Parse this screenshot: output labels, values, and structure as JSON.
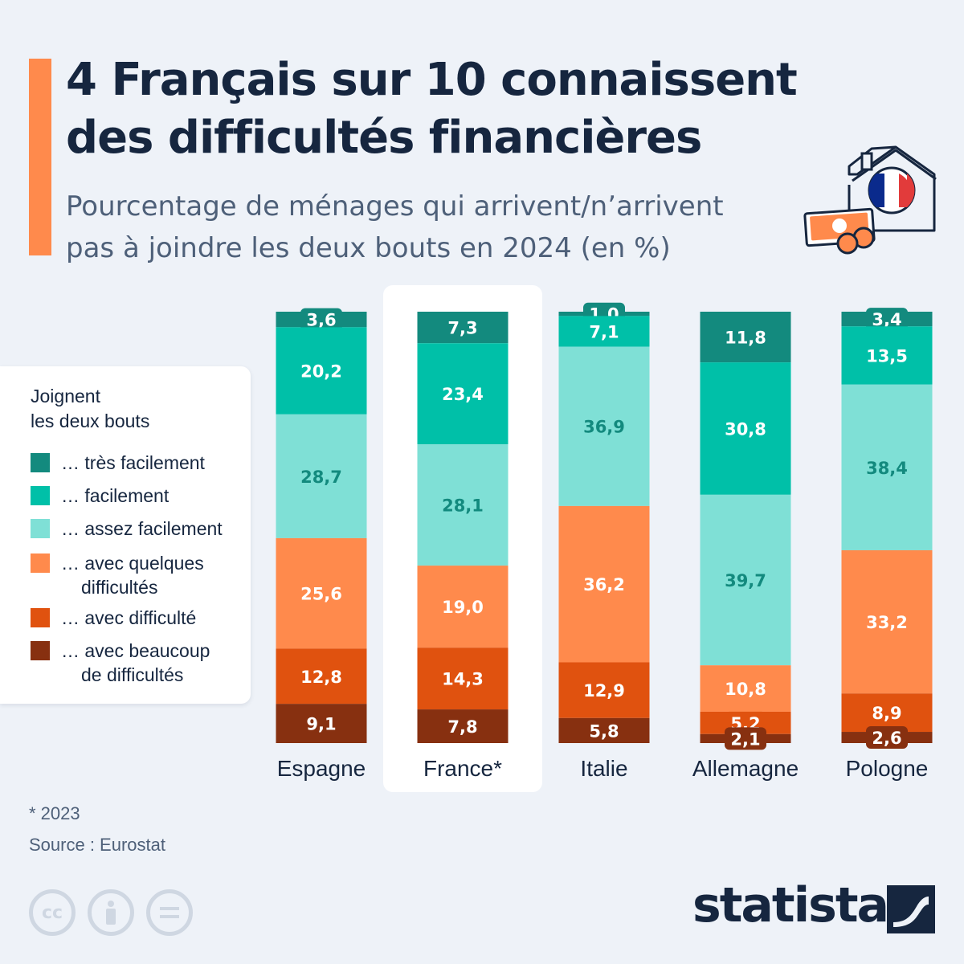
{
  "header": {
    "title_lines": [
      "4 Français sur 10 connaissent",
      "des difficultés financières"
    ],
    "subtitle_lines": [
      "Pourcentage de ménages qui arrivent/n’arrivent",
      "pas à joindre les deux bouts en 2024 (en %)"
    ],
    "illustration_icon": "house-with-french-flag-and-money-icon"
  },
  "legend": {
    "title_lines": [
      "Joignent",
      "les deux bouts"
    ],
    "items": [
      {
        "lines": [
          "… très facilement"
        ],
        "color": "#138a7e"
      },
      {
        "lines": [
          "… facilement"
        ],
        "color": "#00c0a8"
      },
      {
        "lines": [
          "… assez facilement"
        ],
        "color": "#7fe0d6"
      },
      {
        "lines": [
          "… avec quelques",
          "difficultés"
        ],
        "color": "#ff8a4c"
      },
      {
        "lines": [
          "… avec difficulté"
        ],
        "color": "#e0520f"
      },
      {
        "lines": [
          "… avec beaucoup",
          "de difficultés"
        ],
        "color": "#873010"
      }
    ]
  },
  "chart_data": {
    "type": "bar",
    "stacked": true,
    "orientation": "vertical",
    "highlighted_category": "France*",
    "categories": [
      "Espagne",
      "France*",
      "Italie",
      "Allemagne",
      "Pologne"
    ],
    "series": [
      {
        "name": "… très facilement",
        "values": [
          3.6,
          7.3,
          1.0,
          11.8,
          3.4
        ],
        "color": "#138a7e",
        "label_color": "#ffffff"
      },
      {
        "name": "… facilement",
        "values": [
          20.2,
          23.4,
          7.1,
          30.8,
          13.5
        ],
        "color": "#00c0a8",
        "label_color": "#ffffff"
      },
      {
        "name": "… assez facilement",
        "values": [
          28.7,
          28.1,
          36.9,
          39.7,
          38.4
        ],
        "color": "#7fe0d6",
        "label_color": "#138a7e"
      },
      {
        "name": "… avec quelques difficultés",
        "values": [
          25.6,
          19.0,
          36.2,
          10.8,
          33.2
        ],
        "color": "#ff8a4c",
        "label_color": "#ffffff"
      },
      {
        "name": "… avec difficulté",
        "values": [
          12.8,
          14.3,
          12.9,
          5.2,
          8.9
        ],
        "color": "#e0520f",
        "label_color": "#ffffff"
      },
      {
        "name": "… avec beaucoup de difficultés",
        "values": [
          9.1,
          7.8,
          5.8,
          2.1,
          2.6
        ],
        "color": "#873010",
        "label_color": "#ffffff"
      }
    ],
    "decimal_separator": ","
  },
  "footer": {
    "footnote": "* 2023",
    "source": "Source : Eurostat",
    "license_icons": [
      "cc-icon",
      "attribution-icon",
      "no-derivatives-icon"
    ],
    "brand": "statista"
  }
}
